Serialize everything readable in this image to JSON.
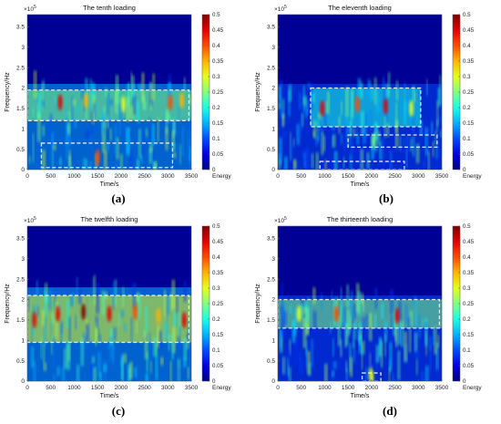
{
  "chart_data": [
    {
      "type": "heatmap",
      "title": "The tenth loading",
      "xlabel": "Time/s",
      "ylabel": "Frequency/Hz",
      "y_exponent": "×10^5",
      "colorbar_label": "Energy",
      "xlim": [
        0,
        3500
      ],
      "ylim": [
        0,
        380000
      ],
      "clim": [
        0,
        0.5
      ],
      "x_ticks": [
        "0",
        "500",
        "1000",
        "1500",
        "2000",
        "2500",
        "3000",
        "3500"
      ],
      "y_ticks": [
        "0",
        "0.5",
        "1",
        "1.5",
        "2",
        "2.5",
        "3",
        "3.5"
      ],
      "colorbar_ticks": [
        "0",
        "0.05",
        "0.1",
        "0.15",
        "0.2",
        "0.25",
        "0.3",
        "0.35",
        "0.4",
        "0.45",
        "0.5"
      ],
      "highlight_regions": [
        {
          "x": [
            0,
            3450
          ],
          "y": [
            120000,
            195000
          ]
        },
        {
          "x": [
            300,
            3100
          ],
          "y": [
            5000,
            65000
          ]
        }
      ],
      "energy_bands": [
        {
          "x": [
            0,
            3500
          ],
          "y": [
            0,
            210000
          ],
          "energy": 0.15
        },
        {
          "x": [
            0,
            3500
          ],
          "y": [
            120000,
            195000
          ],
          "energy": 0.25
        }
      ],
      "peaks": [
        {
          "x": 700,
          "y": 165000,
          "energy": 0.45
        },
        {
          "x": 1250,
          "y": 170000,
          "energy": 0.35
        },
        {
          "x": 1500,
          "y": 30000,
          "energy": 0.4
        },
        {
          "x": 2050,
          "y": 160000,
          "energy": 0.3
        },
        {
          "x": 3050,
          "y": 165000,
          "energy": 0.4
        },
        {
          "x": 3300,
          "y": 170000,
          "energy": 0.35
        }
      ],
      "caption": "(a)"
    },
    {
      "type": "heatmap",
      "title": "The eleventh loading",
      "xlabel": "Time/s",
      "ylabel": "Frequency/Hz",
      "y_exponent": "×10^5",
      "colorbar_label": "Energy",
      "xlim": [
        0,
        3500
      ],
      "ylim": [
        0,
        380000
      ],
      "clim": [
        0,
        0.5
      ],
      "x_ticks": [
        "0",
        "500",
        "1000",
        "1500",
        "2000",
        "2500",
        "3000",
        "3500"
      ],
      "y_ticks": [
        "0",
        "0.5",
        "1",
        "1.5",
        "2",
        "2.5",
        "3",
        "3.5"
      ],
      "colorbar_ticks": [
        "0",
        "0.05",
        "0.1",
        "0.15",
        "0.2",
        "0.25",
        "0.3",
        "0.35",
        "0.4",
        "0.45",
        "0.5"
      ],
      "highlight_regions": [
        {
          "x": [
            700,
            3050
          ],
          "y": [
            105000,
            200000
          ]
        },
        {
          "x": [
            1500,
            3400
          ],
          "y": [
            55000,
            85000
          ]
        },
        {
          "x": [
            900,
            2700
          ],
          "y": [
            0,
            20000
          ]
        }
      ],
      "energy_bands": [
        {
          "x": [
            0,
            3500
          ],
          "y": [
            0,
            210000
          ],
          "energy": 0.1
        },
        {
          "x": [
            700,
            3050
          ],
          "y": [
            105000,
            200000
          ],
          "energy": 0.2
        }
      ],
      "peaks": [
        {
          "x": 950,
          "y": 150000,
          "energy": 0.45
        },
        {
          "x": 1700,
          "y": 160000,
          "energy": 0.4
        },
        {
          "x": 2300,
          "y": 155000,
          "energy": 0.45
        },
        {
          "x": 2850,
          "y": 150000,
          "energy": 0.3
        },
        {
          "x": 2050,
          "y": 70000,
          "energy": 0.25
        }
      ],
      "caption": "(b)"
    },
    {
      "type": "heatmap",
      "title": "The twelfth loading",
      "xlabel": "Time/s",
      "ylabel": "Frequency/Hz",
      "y_exponent": "×10^5",
      "colorbar_label": "Energy",
      "xlim": [
        0,
        3500
      ],
      "ylim": [
        0,
        380000
      ],
      "clim": [
        0,
        0.5
      ],
      "x_ticks": [
        "0",
        "500",
        "1000",
        "1500",
        "2000",
        "2500",
        "3000",
        "3500"
      ],
      "y_ticks": [
        "0",
        "0.5",
        "1",
        "1.5",
        "2",
        "2.5",
        "3",
        "3.5"
      ],
      "colorbar_ticks": [
        "0",
        "0.05",
        "0.1",
        "0.15",
        "0.2",
        "0.25",
        "0.3",
        "0.35",
        "0.4",
        "0.45",
        "0.5"
      ],
      "highlight_regions": [
        {
          "x": [
            0,
            3450
          ],
          "y": [
            95000,
            210000
          ]
        }
      ],
      "energy_bands": [
        {
          "x": [
            0,
            3500
          ],
          "y": [
            0,
            230000
          ],
          "energy": 0.15
        },
        {
          "x": [
            0,
            3500
          ],
          "y": [
            95000,
            210000
          ],
          "energy": 0.3
        }
      ],
      "peaks": [
        {
          "x": 150,
          "y": 150000,
          "energy": 0.45
        },
        {
          "x": 650,
          "y": 165000,
          "energy": 0.45
        },
        {
          "x": 1200,
          "y": 170000,
          "energy": 0.5
        },
        {
          "x": 1750,
          "y": 165000,
          "energy": 0.45
        },
        {
          "x": 2300,
          "y": 170000,
          "energy": 0.4
        },
        {
          "x": 2800,
          "y": 160000,
          "energy": 0.35
        },
        {
          "x": 3350,
          "y": 150000,
          "energy": 0.45
        }
      ],
      "caption": "(c)"
    },
    {
      "type": "heatmap",
      "title": "The thirteenth loading",
      "xlabel": "Time/s",
      "ylabel": "Frequency/Hz",
      "y_exponent": "×10^5",
      "colorbar_label": "Energy",
      "xlim": [
        0,
        3500
      ],
      "ylim": [
        0,
        380000
      ],
      "clim": [
        0,
        0.5
      ],
      "x_ticks": [
        "0",
        "500",
        "1000",
        "1500",
        "2000",
        "2500",
        "3000",
        "3500"
      ],
      "y_ticks": [
        "0",
        "0.5",
        "1",
        "1.5",
        "2",
        "2.5",
        "3",
        "3.5"
      ],
      "colorbar_ticks": [
        "0",
        "0.05",
        "0.1",
        "0.15",
        "0.2",
        "0.25",
        "0.3",
        "0.35",
        "0.4",
        "0.45",
        "0.5"
      ],
      "highlight_regions": [
        {
          "x": [
            0,
            3450
          ],
          "y": [
            130000,
            200000
          ]
        },
        {
          "x": [
            1800,
            2200
          ],
          "y": [
            0,
            20000
          ]
        }
      ],
      "energy_bands": [
        {
          "x": [
            0,
            3500
          ],
          "y": [
            0,
            210000
          ],
          "energy": 0.1
        },
        {
          "x": [
            0,
            3500
          ],
          "y": [
            130000,
            200000
          ],
          "energy": 0.25
        }
      ],
      "peaks": [
        {
          "x": 450,
          "y": 165000,
          "energy": 0.3
        },
        {
          "x": 1250,
          "y": 165000,
          "energy": 0.4
        },
        {
          "x": 2550,
          "y": 160000,
          "energy": 0.45
        },
        {
          "x": 2000,
          "y": 8000,
          "energy": 0.3
        }
      ],
      "caption": "(d)"
    }
  ]
}
